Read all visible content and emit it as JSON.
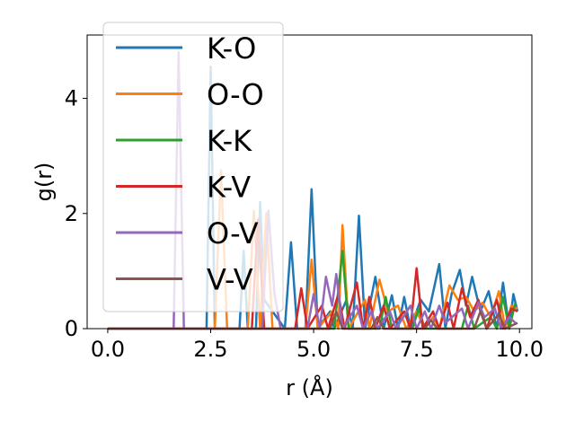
{
  "chart_data": {
    "type": "line",
    "title": "",
    "xlabel": "r (Å)",
    "ylabel": "g(r)",
    "xlim": [
      -0.5,
      10.3
    ],
    "ylim": [
      0,
      5.1
    ],
    "xticks": [
      0.0,
      2.5,
      5.0,
      7.5,
      10.0
    ],
    "xtick_labels": [
      "0.0",
      "2.5",
      "5.0",
      "7.5",
      "10.0"
    ],
    "yticks": [
      0,
      2,
      4
    ],
    "ytick_labels": [
      "0",
      "2",
      "4"
    ],
    "grid": false,
    "legend_position": "upper-left",
    "series": [
      {
        "name": "K-O",
        "color": "#1f77b4",
        "points": [
          [
            0,
            0
          ],
          [
            2.4,
            0
          ],
          [
            2.5,
            4.55
          ],
          [
            2.6,
            0
          ],
          [
            3.2,
            0
          ],
          [
            3.3,
            1.35
          ],
          [
            3.4,
            0
          ],
          [
            3.6,
            0
          ],
          [
            3.7,
            2.2
          ],
          [
            3.8,
            0.5
          ],
          [
            4.3,
            0
          ],
          [
            4.45,
            1.5
          ],
          [
            4.6,
            0
          ],
          [
            4.8,
            0
          ],
          [
            4.95,
            2.42
          ],
          [
            5.1,
            0
          ],
          [
            5.4,
            0.3
          ],
          [
            5.5,
            0
          ],
          [
            5.8,
            0.5
          ],
          [
            5.95,
            0
          ],
          [
            6.1,
            1.96
          ],
          [
            6.25,
            0
          ],
          [
            6.5,
            0.9
          ],
          [
            6.7,
            0
          ],
          [
            6.9,
            0.58
          ],
          [
            7.05,
            0
          ],
          [
            7.2,
            0.55
          ],
          [
            7.35,
            0
          ],
          [
            7.6,
            0.5
          ],
          [
            7.8,
            0.3
          ],
          [
            8.05,
            1.12
          ],
          [
            8.2,
            0
          ],
          [
            8.35,
            0.6
          ],
          [
            8.55,
            1.02
          ],
          [
            8.7,
            0.4
          ],
          [
            8.85,
            0.9
          ],
          [
            9.05,
            0.3
          ],
          [
            9.25,
            0.65
          ],
          [
            9.45,
            0
          ],
          [
            9.6,
            0.8
          ],
          [
            9.75,
            0
          ],
          [
            9.85,
            0.6
          ],
          [
            9.95,
            0.3
          ]
        ]
      },
      {
        "name": "O-O",
        "color": "#ff7f0e",
        "points": [
          [
            0,
            0
          ],
          [
            2.6,
            0
          ],
          [
            2.75,
            2.75
          ],
          [
            2.9,
            0
          ],
          [
            3.4,
            0
          ],
          [
            3.55,
            2.05
          ],
          [
            3.7,
            0
          ],
          [
            3.85,
            2.0
          ],
          [
            4.0,
            0
          ],
          [
            4.8,
            0
          ],
          [
            4.95,
            1.2
          ],
          [
            5.1,
            0
          ],
          [
            5.45,
            0.3
          ],
          [
            5.6,
            0
          ],
          [
            5.7,
            1.8
          ],
          [
            5.85,
            0
          ],
          [
            6.25,
            0.5
          ],
          [
            6.35,
            0
          ],
          [
            6.6,
            0.85
          ],
          [
            6.8,
            0.3
          ],
          [
            7.05,
            0.4
          ],
          [
            7.25,
            0
          ],
          [
            7.5,
            0.3
          ],
          [
            7.7,
            0
          ],
          [
            7.9,
            0.2
          ],
          [
            8.05,
            0
          ],
          [
            8.3,
            0.75
          ],
          [
            8.5,
            0.5
          ],
          [
            8.7,
            0.55
          ],
          [
            8.9,
            0.3
          ],
          [
            9.1,
            0.45
          ],
          [
            9.3,
            0.2
          ],
          [
            9.5,
            0.65
          ],
          [
            9.65,
            0
          ],
          [
            9.8,
            0.4
          ],
          [
            9.95,
            0.35
          ]
        ]
      },
      {
        "name": "K-K",
        "color": "#2ca02c",
        "points": [
          [
            0,
            0
          ],
          [
            5.5,
            0
          ],
          [
            5.7,
            1.35
          ],
          [
            5.85,
            0
          ],
          [
            6.6,
            0
          ],
          [
            6.75,
            0.55
          ],
          [
            6.9,
            0
          ],
          [
            7.4,
            0
          ],
          [
            7.55,
            0.35
          ],
          [
            7.7,
            0
          ],
          [
            8.6,
            0
          ],
          [
            8.75,
            0.4
          ],
          [
            8.9,
            0
          ],
          [
            9.3,
            0.2
          ],
          [
            9.45,
            0
          ],
          [
            9.6,
            0.55
          ],
          [
            9.75,
            0
          ],
          [
            9.9,
            0.45
          ]
        ]
      },
      {
        "name": "K-V",
        "color": "#d62728",
        "points": [
          [
            0,
            0
          ],
          [
            3.5,
            0
          ],
          [
            3.65,
            1.9
          ],
          [
            3.8,
            0
          ],
          [
            4.55,
            0
          ],
          [
            4.7,
            0.7
          ],
          [
            4.85,
            0
          ],
          [
            5.2,
            0.4
          ],
          [
            5.35,
            0
          ],
          [
            5.6,
            0.6
          ],
          [
            5.75,
            0
          ],
          [
            6.05,
            0.8
          ],
          [
            6.2,
            0
          ],
          [
            6.35,
            0.55
          ],
          [
            6.5,
            0
          ],
          [
            6.7,
            0.4
          ],
          [
            6.85,
            0
          ],
          [
            7.2,
            0.3
          ],
          [
            7.35,
            0
          ],
          [
            7.5,
            1.05
          ],
          [
            7.65,
            0
          ],
          [
            7.9,
            0.3
          ],
          [
            8.05,
            0
          ],
          [
            8.25,
            0.45
          ],
          [
            8.4,
            0
          ],
          [
            8.6,
            0.7
          ],
          [
            8.8,
            0.2
          ],
          [
            9.0,
            0.5
          ],
          [
            9.2,
            0
          ],
          [
            9.45,
            0.5
          ],
          [
            9.6,
            0
          ],
          [
            9.8,
            0.35
          ],
          [
            9.95,
            0.3
          ]
        ]
      },
      {
        "name": "O-V",
        "color": "#9467bd",
        "points": [
          [
            0,
            0
          ],
          [
            1.6,
            0
          ],
          [
            1.72,
            4.8
          ],
          [
            1.85,
            0
          ],
          [
            3.75,
            0
          ],
          [
            3.9,
            2.05
          ],
          [
            4.05,
            0.6
          ],
          [
            4.2,
            0
          ],
          [
            4.85,
            0
          ],
          [
            5.0,
            0.6
          ],
          [
            5.15,
            0
          ],
          [
            5.3,
            0.9
          ],
          [
            5.45,
            0.4
          ],
          [
            5.55,
            0.95
          ],
          [
            5.7,
            0
          ],
          [
            6.05,
            0.4
          ],
          [
            6.2,
            0
          ],
          [
            6.4,
            0.3
          ],
          [
            6.55,
            0
          ],
          [
            6.85,
            0.3
          ],
          [
            7.0,
            0
          ],
          [
            7.35,
            0.4
          ],
          [
            7.5,
            0
          ],
          [
            7.7,
            0.3
          ],
          [
            7.85,
            0
          ],
          [
            8.05,
            0.4
          ],
          [
            8.2,
            0.1
          ],
          [
            8.6,
            0.35
          ],
          [
            8.75,
            0
          ],
          [
            9.0,
            0.45
          ],
          [
            9.15,
            0.2
          ],
          [
            9.4,
            0.35
          ],
          [
            9.55,
            0
          ],
          [
            9.75,
            0.2
          ],
          [
            9.9,
            0.1
          ]
        ]
      },
      {
        "name": "V-V",
        "color": "#8c564b",
        "points": [
          [
            0,
            0
          ],
          [
            5.4,
            0
          ],
          [
            5.55,
            0.3
          ],
          [
            5.7,
            0
          ],
          [
            6.4,
            0
          ],
          [
            6.55,
            0.2
          ],
          [
            6.7,
            0
          ],
          [
            7.7,
            0
          ],
          [
            7.85,
            0.15
          ],
          [
            8.0,
            0
          ],
          [
            8.9,
            0
          ],
          [
            9.05,
            0.3
          ],
          [
            9.2,
            0
          ],
          [
            9.5,
            0.25
          ],
          [
            9.65,
            0
          ],
          [
            9.95,
            0.1
          ]
        ]
      }
    ]
  }
}
